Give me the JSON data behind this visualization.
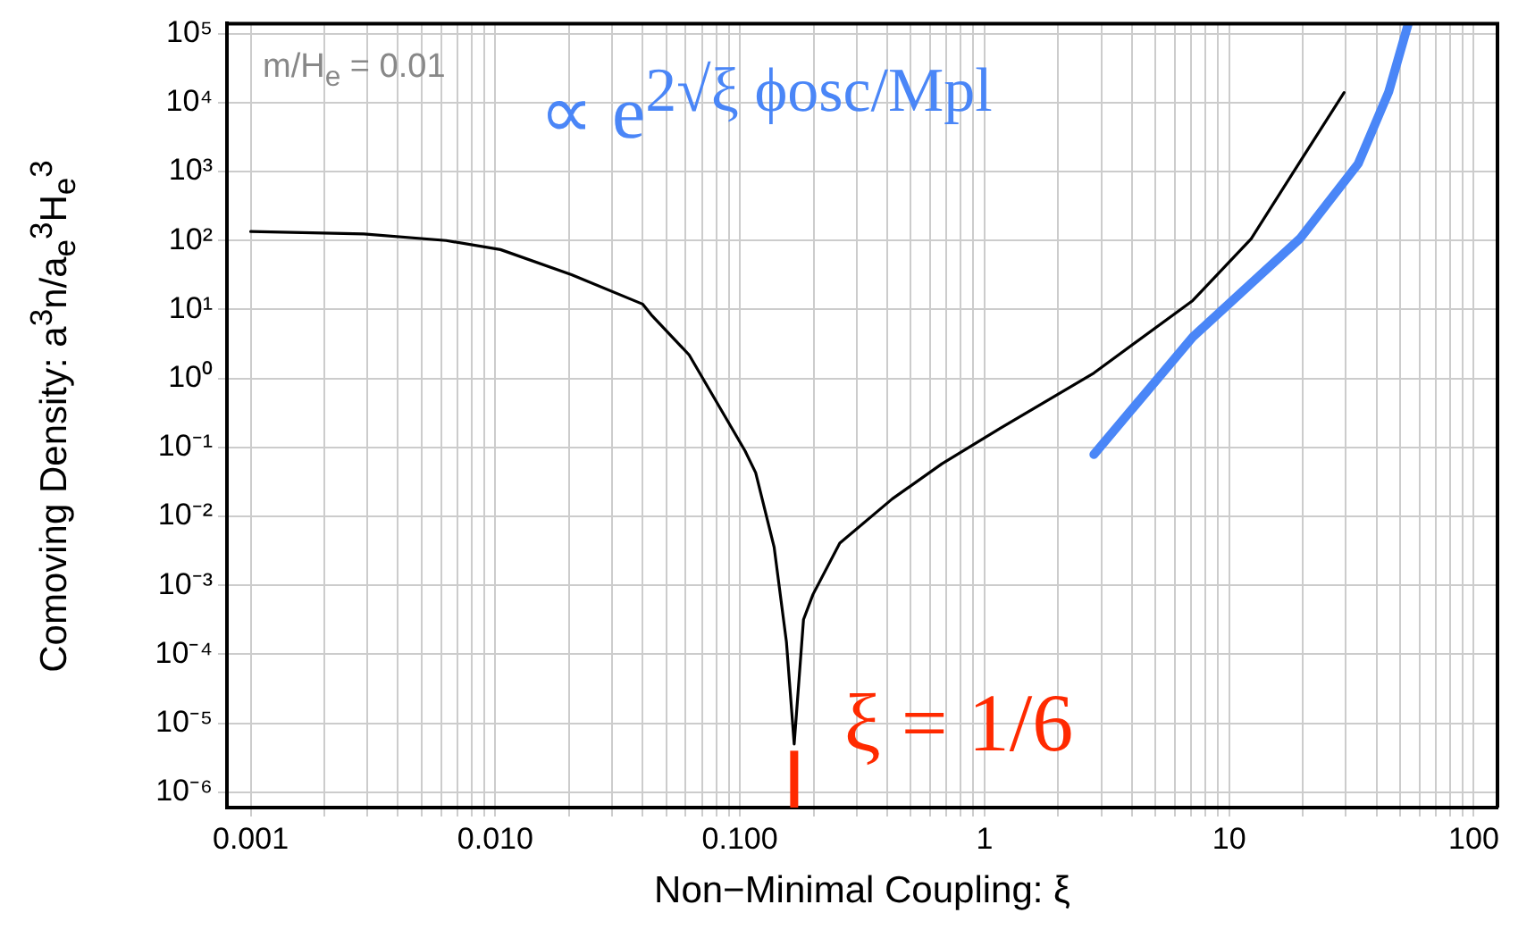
{
  "chart_data": {
    "type": "line",
    "xlabel": "Non−Minimal Coupling:  ξ",
    "ylabel": "Comoving Density:  a$^{3}$n/a$_{e}$$^{3}$H$_{e}$$^{3}$",
    "log": "xy",
    "grid": true,
    "legend": false,
    "marker": "none",
    "line_style": "solid",
    "xlim": [
      0.0008,
      125
    ],
    "ylim": [
      6e-07,
      140000
    ],
    "xticks": [
      {
        "value": 0.001,
        "label": "0.001"
      },
      {
        "value": 0.002,
        "label": null
      },
      {
        "value": 0.003,
        "label": null
      },
      {
        "value": 0.004,
        "label": null
      },
      {
        "value": 0.005,
        "label": null
      },
      {
        "value": 0.006,
        "label": null
      },
      {
        "value": 0.007,
        "label": null
      },
      {
        "value": 0.008,
        "label": null
      },
      {
        "value": 0.009,
        "label": null
      },
      {
        "value": 0.01,
        "label": "0.010"
      },
      {
        "value": 0.02,
        "label": null
      },
      {
        "value": 0.03,
        "label": null
      },
      {
        "value": 0.04,
        "label": null
      },
      {
        "value": 0.05,
        "label": null
      },
      {
        "value": 0.06,
        "label": null
      },
      {
        "value": 0.07,
        "label": null
      },
      {
        "value": 0.08,
        "label": null
      },
      {
        "value": 0.09,
        "label": null
      },
      {
        "value": 0.1,
        "label": "0.100"
      },
      {
        "value": 0.2,
        "label": null
      },
      {
        "value": 0.3,
        "label": null
      },
      {
        "value": 0.4,
        "label": null
      },
      {
        "value": 0.5,
        "label": null
      },
      {
        "value": 0.6,
        "label": null
      },
      {
        "value": 0.7,
        "label": null
      },
      {
        "value": 0.8,
        "label": null
      },
      {
        "value": 0.9,
        "label": null
      },
      1,
      {
        "value": 2,
        "label": null
      },
      {
        "value": 3,
        "label": null
      },
      {
        "value": 4,
        "label": null
      },
      {
        "value": 5,
        "label": null
      },
      {
        "value": 6,
        "label": null
      },
      {
        "value": 7,
        "label": null
      },
      {
        "value": 8,
        "label": null
      },
      {
        "value": 9,
        "label": null
      },
      10,
      {
        "value": 20,
        "label": null
      },
      {
        "value": 30,
        "label": null
      },
      {
        "value": 40,
        "label": null
      },
      {
        "value": 50,
        "label": null
      },
      {
        "value": 60,
        "label": null
      },
      {
        "value": 70,
        "label": null
      },
      {
        "value": 80,
        "label": null
      },
      {
        "value": 90,
        "label": null
      },
      100
    ],
    "yticks": [
      {
        "value": 1e-06,
        "label": "10⁻⁶"
      },
      {
        "value": 1e-05,
        "label": "10⁻⁵"
      },
      {
        "value": 0.0001,
        "label": "10⁻⁴"
      },
      {
        "value": 0.001,
        "label": "10⁻³"
      },
      {
        "value": 0.01,
        "label": "10⁻²"
      },
      {
        "value": 0.1,
        "label": "10⁻¹"
      },
      {
        "value": 1,
        "label": "10⁰"
      },
      {
        "value": 10,
        "label": "10¹"
      },
      {
        "value": 100,
        "label": "10²"
      },
      {
        "value": 1000,
        "label": "10³"
      },
      {
        "value": 10000,
        "label": "10⁴"
      },
      {
        "value": 100000,
        "label": "10⁵"
      }
    ],
    "series": [
      {
        "color": "#000000",
        "x": [
          0.001,
          0.0029,
          0.0063,
          0.0105,
          0.0205,
          0.04,
          0.0434,
          0.062,
          0.105,
          0.116,
          0.138,
          0.155,
          0.1667,
          0.182,
          0.199,
          0.256,
          0.42,
          0.67,
          1.16,
          2.8,
          7.1,
          12.3,
          19.5,
          29.5
        ],
        "values": [
          135,
          125,
          100,
          74,
          32,
          12,
          8.4,
          2.2,
          0.089,
          0.043,
          0.0036,
          0.00015,
          5e-06,
          0.00032,
          0.00074,
          0.0041,
          0.018,
          0.058,
          0.19,
          1.2,
          13.5,
          106,
          1400,
          14000
        ]
      },
      {
        "color": "#4a86f7",
        "x": [
          2.8,
          7.1,
          19.5,
          33.7,
          44.9,
          54
        ],
        "values": [
          0.079,
          4,
          107,
          1300,
          14300,
          140000
        ]
      },
      {
        "color": "#ff2a00",
        "x": [
          0.1667,
          0.1667
        ],
        "values": [
          6e-07,
          4e-06
        ]
      }
    ],
    "annotations": [
      "m/H$_{e}$ = 0.01",
      "∝ e$^{2√ξ ϕosc/Mpl}$",
      {
        "text": "ξ = 1/6",
        "x": 0.1667,
        "y": 4e-06
      }
    ]
  }
}
